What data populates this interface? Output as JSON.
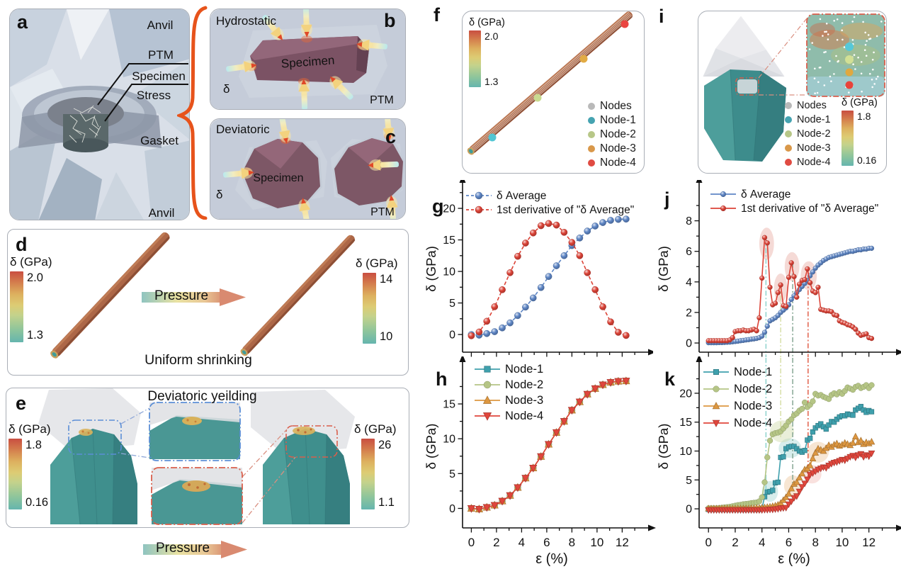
{
  "panels": {
    "a": {
      "letter": "a",
      "anvil_top": "Anvil",
      "ptm": "PTM",
      "specimen": "Specimen",
      "stress": "Stress",
      "gasket": "Gasket",
      "anvil_bottom": "Anvil"
    },
    "b": {
      "letter": "b",
      "title": "Hydrostatic",
      "specimen": "Specimen",
      "delta": "δ",
      "ptm": "PTM"
    },
    "c": {
      "letter": "c",
      "title": "Deviatoric",
      "specimen": "Specimen",
      "delta": "δ",
      "ptm": "PTM"
    },
    "d": {
      "letter": "d",
      "caption": "Uniform shrinking",
      "pressure_label": "Pressure",
      "colorbar_left": {
        "title": "δ (GPa)",
        "max": "2.0",
        "min": "1.3"
      },
      "colorbar_right": {
        "title": "δ (GPa)",
        "max": "14",
        "min": "10"
      }
    },
    "e": {
      "letter": "e",
      "caption": "Deviatoric yeilding",
      "pressure_label": "Pressure",
      "colorbar_left": {
        "title": "δ (GPa)",
        "max": "1.8",
        "min": "0.16"
      },
      "colorbar_right": {
        "title": "δ (GPa)",
        "max": "26",
        "min": "1.1"
      }
    },
    "f": {
      "letter": "f",
      "colorbar": {
        "title": "δ (GPa)",
        "max": "2.0",
        "min": "1.3"
      },
      "legend": [
        {
          "label": "Nodes",
          "color": "#b9b9b9"
        },
        {
          "label": "Node-1",
          "color": "#45a3b1"
        },
        {
          "label": "Node-2",
          "color": "#b7c788"
        },
        {
          "label": "Node-3",
          "color": "#d9984a"
        },
        {
          "label": "Node-4",
          "color": "#e04b42"
        }
      ]
    },
    "i": {
      "letter": "i",
      "colorbar": {
        "title": "δ (GPa)",
        "max": "1.8",
        "min": "0.16"
      },
      "legend": [
        {
          "label": "Nodes",
          "color": "#b9b9b9"
        },
        {
          "label": "Node-1",
          "color": "#45a3b1"
        },
        {
          "label": "Node-2",
          "color": "#b7c788"
        },
        {
          "label": "Node-3",
          "color": "#d9984a"
        },
        {
          "label": "Node-4",
          "color": "#e04b42"
        }
      ]
    },
    "g": {
      "letter": "g"
    },
    "h": {
      "letter": "h"
    },
    "j": {
      "letter": "j"
    },
    "k": {
      "letter": "k"
    }
  },
  "chart_data": [
    {
      "id": "g",
      "type": "line",
      "ylabel": "δ (GPa)",
      "xlabel": "",
      "ylim": [
        -2.8,
        23.6
      ],
      "yticks": [
        0,
        5,
        10,
        15,
        20
      ],
      "xlim": [
        -0.7,
        13.5
      ],
      "xticks": [
        0,
        2,
        4,
        6,
        8,
        10,
        12
      ],
      "show_xlabels": false,
      "x": [
        0,
        0.62,
        1.23,
        1.85,
        2.46,
        3.08,
        3.69,
        4.31,
        4.92,
        5.54,
        6.15,
        6.77,
        7.38,
        8.0,
        8.62,
        9.23,
        9.85,
        10.46,
        11.08,
        11.69,
        12.31
      ],
      "series": [
        {
          "name": "δ Average",
          "color": "#5e86c5",
          "marker": "circle",
          "ball": true,
          "dash": "5 3",
          "label_color": "#1a1a1a",
          "y": [
            0,
            -0.1,
            0.15,
            0.45,
            1.05,
            1.85,
            3.0,
            4.35,
            5.8,
            7.45,
            9.2,
            10.9,
            12.5,
            14.1,
            15.3,
            16.4,
            17.2,
            17.75,
            18.1,
            18.25,
            18.3
          ]
        },
        {
          "name": "1st derivative of \"δ Average\"",
          "color": "#dc4337",
          "marker": "circle",
          "ball": true,
          "dash": "5 3",
          "label_color": "#dc4337",
          "y": [
            -0.2,
            0.4,
            2.1,
            4.4,
            7.1,
            9.8,
            12.4,
            14.5,
            16.1,
            17.25,
            17.6,
            17.35,
            16.2,
            14.6,
            12.5,
            9.8,
            7.1,
            4.4,
            2.0,
            0.35,
            -0.15
          ]
        }
      ]
    },
    {
      "id": "h",
      "type": "line",
      "ylabel": "δ (GPa)",
      "xlabel": "ε (%)",
      "ylim": [
        -2.8,
        20.6
      ],
      "yticks": [
        0,
        5,
        10,
        15
      ],
      "xlim": [
        -0.7,
        13.5
      ],
      "xticks": [
        0,
        2,
        4,
        6,
        8,
        10,
        12
      ],
      "show_xlabels": true,
      "x": [
        0,
        0.62,
        1.23,
        1.85,
        2.46,
        3.08,
        3.69,
        4.31,
        4.92,
        5.54,
        6.15,
        6.77,
        7.38,
        8.0,
        8.62,
        9.23,
        9.85,
        10.46,
        11.08,
        11.69,
        12.31
      ],
      "series": [
        {
          "name": "Node-1",
          "color": "#3fa0ad",
          "marker": "square",
          "y": [
            0,
            -0.1,
            0.15,
            0.45,
            1.05,
            1.85,
            3.0,
            4.35,
            5.8,
            7.45,
            9.2,
            10.9,
            12.5,
            14.1,
            15.3,
            16.4,
            17.2,
            17.75,
            18.1,
            18.25,
            18.3
          ]
        },
        {
          "name": "Node-2",
          "color": "#b5c585",
          "marker": "circle",
          "y": [
            0,
            -0.1,
            0.15,
            0.45,
            1.05,
            1.85,
            3.0,
            4.35,
            5.8,
            7.45,
            9.2,
            10.9,
            12.5,
            14.1,
            15.3,
            16.4,
            17.2,
            17.75,
            18.1,
            18.25,
            18.3
          ]
        },
        {
          "name": "Node-3",
          "color": "#dd9740",
          "marker": "triangle",
          "y": [
            0,
            -0.1,
            0.15,
            0.45,
            1.05,
            1.85,
            3.0,
            4.35,
            5.8,
            7.45,
            9.2,
            10.9,
            12.5,
            14.1,
            15.3,
            16.4,
            17.2,
            17.75,
            18.1,
            18.25,
            18.3
          ]
        },
        {
          "name": "Node-4",
          "color": "#e0463c",
          "marker": "triangle-down",
          "y": [
            0,
            -0.1,
            0.15,
            0.45,
            1.05,
            1.85,
            3.0,
            4.35,
            5.8,
            7.45,
            9.2,
            10.9,
            12.5,
            14.1,
            15.3,
            16.4,
            17.2,
            17.75,
            18.1,
            18.25,
            18.3
          ]
        }
      ]
    },
    {
      "id": "j",
      "type": "line",
      "ylabel": "δ (GPa)",
      "xlabel": "",
      "ylim": [
        -0.6,
        10.3
      ],
      "yticks": [
        0,
        2,
        4,
        6,
        8
      ],
      "xlim": [
        -0.7,
        13.5
      ],
      "xticks": [
        0,
        2,
        4,
        6,
        8,
        10,
        12
      ],
      "show_xlabels": false,
      "x_start": 0,
      "x_step": 0.2,
      "vlines": [
        {
          "x": 4.3,
          "color": "#8ed2cd",
          "from": 6.9
        },
        {
          "x": 5.4,
          "color": "#d7dfa8",
          "from": 3.8
        },
        {
          "x": 6.3,
          "color": "#85a693",
          "from": 5.25
        },
        {
          "x": 7.45,
          "color": "#e2604a",
          "from": 4.85
        }
      ],
      "ellipses": [
        {
          "x": 4.35,
          "y": 6.5,
          "rx": 0.55,
          "ry": 1.05
        },
        {
          "x": 5.4,
          "y": 3.6,
          "rx": 0.5,
          "ry": 0.95
        },
        {
          "x": 6.25,
          "y": 5.0,
          "rx": 0.55,
          "ry": 0.95
        },
        {
          "x": 7.5,
          "y": 4.4,
          "rx": 0.6,
          "ry": 0.95
        }
      ],
      "series": [
        {
          "name": "δ Average",
          "color": "#5e86c5",
          "marker": "circle",
          "ball": true,
          "label_color": "#1a1a1a",
          "y": [
            0.02,
            0.02,
            0.02,
            0.02,
            0.03,
            0.03,
            0.04,
            0.05,
            0.06,
            0.08,
            0.1,
            0.12,
            0.15,
            0.17,
            0.2,
            0.22,
            0.25,
            0.27,
            0.3,
            0.35,
            0.45,
            0.7,
            1.1,
            1.45,
            1.55,
            1.65,
            1.8,
            2.0,
            2.15,
            2.3,
            2.5,
            2.85,
            3.1,
            3.3,
            3.5,
            3.7,
            3.9,
            4.1,
            4.4,
            4.65,
            4.9,
            5.1,
            5.25,
            5.4,
            5.5,
            5.6,
            5.65,
            5.7,
            5.75,
            5.8,
            5.85,
            5.9,
            5.95,
            6.0,
            6.0,
            6.05,
            6.1,
            6.1,
            6.15,
            6.15,
            6.2,
            6.2
          ]
        },
        {
          "name": "1st derivative of \"δ Average\"",
          "color": "#dc4337",
          "marker": "circle",
          "ball": true,
          "label_color": "#dc4337",
          "y": [
            0.15,
            0.15,
            0.15,
            0.15,
            0.15,
            0.15,
            0.15,
            0.15,
            0.2,
            0.35,
            0.75,
            0.8,
            0.8,
            0.85,
            0.8,
            0.8,
            0.85,
            0.9,
            0.8,
            1.65,
            4.25,
            6.9,
            6.55,
            3.65,
            2.5,
            2.6,
            3.3,
            3.8,
            2.45,
            2.4,
            4.3,
            5.25,
            4.35,
            3.0,
            3.85,
            4.1,
            4.15,
            4.85,
            3.95,
            3.4,
            3.3,
            3.65,
            2.2,
            2.15,
            2.1,
            2.1,
            2.05,
            1.85,
            1.8,
            1.45,
            1.35,
            1.3,
            1.2,
            1.15,
            1.05,
            0.9,
            0.65,
            0.5,
            0.55,
            0.6,
            0.35,
            0.3
          ]
        }
      ]
    },
    {
      "id": "k",
      "type": "line",
      "ylabel": "δ (GPa)",
      "xlabel": "ε (%)",
      "ylim": [
        -3.3,
        24.9
      ],
      "yticks": [
        0,
        5,
        10,
        15,
        20
      ],
      "xlim": [
        -0.7,
        13.5
      ],
      "xticks": [
        0,
        2,
        4,
        6,
        8,
        10,
        12
      ],
      "show_xlabels": true,
      "x_start": 0,
      "x_step": 0.2,
      "vlines": [
        {
          "x": 4.3,
          "color": "#8ed2cd",
          "to": 2.4
        },
        {
          "x": 5.4,
          "color": "#d7dfa8",
          "to": 12.2
        },
        {
          "x": 6.3,
          "color": "#85a693",
          "to": 3.4
        },
        {
          "x": 7.45,
          "color": "#e2604a",
          "to": 5.0
        }
      ],
      "ellipses": [
        {
          "x": 4.6,
          "y": 3.0,
          "rx": 0.6,
          "ry": 1.8,
          "color": "#9fd4d2"
        },
        {
          "x": 6.1,
          "y": 10.5,
          "rx": 0.85,
          "ry": 1.7,
          "color": "#9fd4d2"
        },
        {
          "x": 5.5,
          "y": 13.4,
          "rx": 0.9,
          "ry": 1.9,
          "color": "#ccd9a4"
        },
        {
          "x": 6.3,
          "y": 4.0,
          "rx": 0.65,
          "ry": 1.8,
          "color": "#ecc497"
        },
        {
          "x": 8.2,
          "y": 9.8,
          "rx": 0.8,
          "ry": 1.8,
          "color": "#ecc497"
        },
        {
          "x": 7.75,
          "y": 6.0,
          "rx": 0.7,
          "ry": 1.6,
          "color": "#f0b7b0"
        }
      ],
      "series": [
        {
          "name": "Node-1",
          "color": "#3fa0ad",
          "marker": "square",
          "y": [
            -0.1,
            -0.1,
            -0.1,
            -0.1,
            -0.1,
            -0.1,
            -0.1,
            -0.1,
            -0.1,
            -0.1,
            -0.1,
            -0.1,
            -0.1,
            -0.1,
            -0.1,
            -0.1,
            -0.1,
            -0.1,
            -0.1,
            -0.1,
            0.1,
            2.1,
            2.9,
            3.0,
            3.2,
            4.5,
            4.6,
            8.9,
            9.0,
            10.4,
            10.7,
            10.8,
            10.8,
            10.4,
            10.0,
            9.8,
            10.1,
            11.9,
            12.2,
            13.3,
            14.0,
            14.4,
            14.7,
            14.2,
            13.8,
            14.5,
            15.1,
            15.0,
            15.5,
            15.9,
            16.1,
            16.1,
            16.4,
            16.3,
            16.2,
            17.1,
            17.4,
            17.7,
            17.1,
            16.7,
            17.0,
            16.8
          ]
        },
        {
          "name": "Node-2",
          "color": "#b5c585",
          "marker": "circle",
          "y": [
            0.1,
            0.1,
            0.1,
            0.1,
            0.15,
            0.2,
            0.25,
            0.3,
            0.35,
            0.45,
            0.55,
            0.65,
            0.7,
            0.8,
            0.85,
            0.9,
            1.0,
            1.05,
            1.1,
            1.3,
            2.0,
            4.6,
            8.9,
            11.8,
            12.9,
            13.1,
            13.2,
            13.4,
            13.9,
            14.4,
            15.1,
            15.5,
            16.2,
            16.5,
            17.0,
            17.3,
            18.4,
            17.6,
            18.0,
            18.6,
            19.9,
            19.6,
            19.7,
            19.4,
            19.2,
            19.0,
            19.7,
            20.0,
            19.8,
            20.2,
            19.9,
            20.4,
            21.0,
            20.8,
            20.6,
            21.1,
            21.3,
            20.9,
            21.1,
            21.4,
            20.9,
            21.4
          ]
        },
        {
          "name": "Node-3",
          "color": "#dd9740",
          "marker": "triangle",
          "y": [
            0.05,
            0.05,
            0.05,
            0.05,
            0.05,
            0.05,
            0.05,
            0.05,
            0.05,
            0.05,
            0.05,
            0.05,
            0.05,
            0.05,
            0.05,
            0.05,
            0.1,
            0.1,
            0.15,
            0.15,
            0.2,
            0.25,
            0.3,
            0.35,
            0.45,
            0.55,
            0.7,
            1.0,
            1.5,
            2.0,
            2.6,
            3.5,
            4.3,
            4.6,
            5.4,
            6.1,
            6.8,
            7.0,
            7.5,
            8.7,
            9.7,
            10.4,
            10.2,
            10.0,
            10.5,
            11.0,
            10.7,
            11.1,
            11.3,
            10.9,
            11.1,
            11.4,
            11.2,
            11.0,
            11.4,
            12.5,
            11.5,
            11.8,
            11.2,
            11.5,
            11.3,
            11.6
          ]
        },
        {
          "name": "Node-4",
          "color": "#e0463c",
          "marker": "triangle-down",
          "y": [
            -0.2,
            -0.2,
            -0.2,
            -0.2,
            -0.2,
            -0.2,
            -0.2,
            -0.2,
            -0.2,
            -0.2,
            -0.2,
            -0.2,
            -0.2,
            -0.2,
            -0.2,
            -0.2,
            -0.2,
            -0.2,
            -0.2,
            -0.2,
            -0.2,
            -0.15,
            -0.15,
            -0.1,
            -0.1,
            -0.05,
            0.0,
            0.1,
            0.15,
            0.2,
            0.8,
            1.3,
            1.9,
            2.2,
            3.0,
            3.8,
            4.4,
            5.1,
            5.9,
            6.2,
            6.5,
            6.8,
            7.0,
            7.2,
            7.1,
            7.5,
            7.8,
            8.0,
            8.1,
            8.3,
            8.5,
            8.4,
            8.7,
            9.0,
            9.2,
            8.9,
            9.3,
            9.5,
            9.0,
            9.3,
            9.1,
            9.6
          ]
        }
      ]
    }
  ]
}
